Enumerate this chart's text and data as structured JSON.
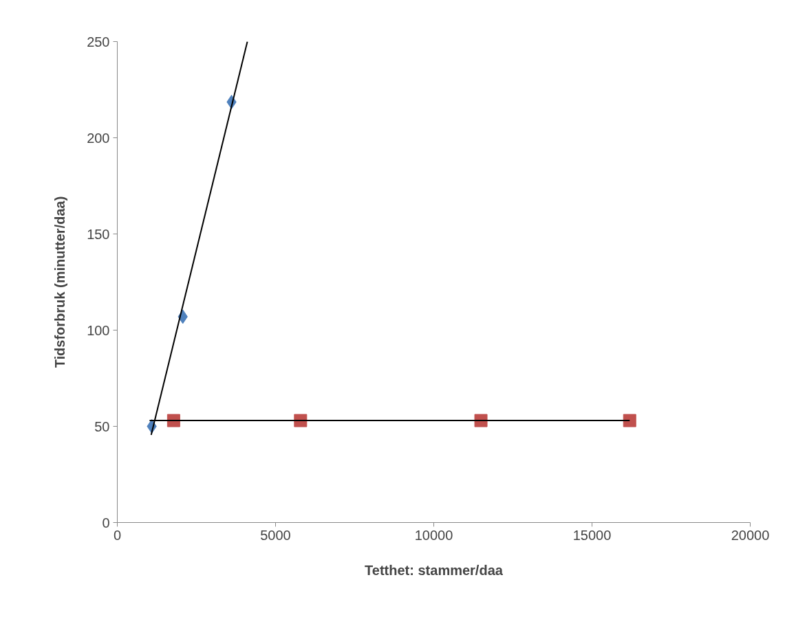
{
  "chart_data": {
    "type": "scatter",
    "xlabel": "Tetthet: stammer/daa",
    "ylabel": "Tidsforbruk (minutter/daa)",
    "xlim": [
      0,
      20000
    ],
    "ylim": [
      0,
      250
    ],
    "xticks": [
      0,
      5000,
      10000,
      15000,
      20000
    ],
    "yticks": [
      0,
      50,
      100,
      150,
      200,
      250
    ],
    "grid": false,
    "series": [
      {
        "marker": "diamond",
        "color": "#4f81bd",
        "x": [
          1090,
          2070,
          3610
        ],
        "values": [
          50,
          107,
          218.6
        ]
      },
      {
        "marker": "square",
        "color": "#c0504d",
        "x": [
          1780,
          5790,
          11490,
          16190
        ],
        "values": [
          53,
          53,
          53,
          53
        ]
      },
      {
        "type": "line",
        "marker": "none",
        "color": "#000000",
        "x": [
          1070,
          4110
        ],
        "values": [
          45.5,
          250
        ]
      },
      {
        "type": "line",
        "marker": "none",
        "color": "#000000",
        "x": [
          1020,
          16190
        ],
        "values": [
          53,
          53
        ]
      }
    ]
  }
}
